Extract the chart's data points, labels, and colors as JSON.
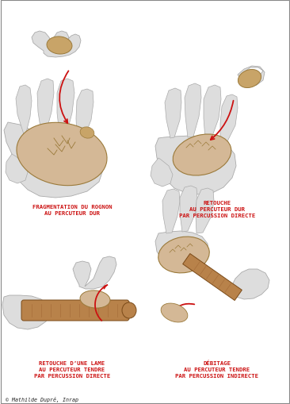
{
  "background_color": "#ffffff",
  "border_color": "#888888",
  "figsize": [
    3.66,
    5.1
  ],
  "dpi": 100,
  "labels": {
    "top_left_lines": [
      "FRAGMENTATION DU ROGNON",
      "AU PERCUTEUR DUR"
    ],
    "top_right_lines": [
      "RETOUCHE",
      "AU PERCUTEUR DUR",
      "PAR PERCUSSION DIRECTE"
    ],
    "bottom_left_lines": [
      "RETOUCHE D’UNE LAME",
      "AU PERCUTEUR TENDRE",
      "PAR PERCUSSION DIRECTE"
    ],
    "bottom_right_lines": [
      "DÉBITAGE",
      "AU PERCUTEUR TENDRE",
      "PAR PERCUSSION INDIRECTE"
    ]
  },
  "copyright": "© Mathilde Dupré, Inrap",
  "label_color": "#cc1111",
  "label_fontsize": 5.2,
  "copyright_fontsize": 4.8,
  "copyright_color": "#222222",
  "arrow_color": "#cc1111",
  "stone_face": "#d4b896",
  "stone_edge": "#9b7a3a",
  "stone_dark": "#c8a468",
  "wood_face": "#b8824a",
  "wood_edge": "#7a4a18",
  "hand_color": "#dddddd",
  "hand_edge": "#aaaaaa",
  "line_color": "#aaaaaa"
}
